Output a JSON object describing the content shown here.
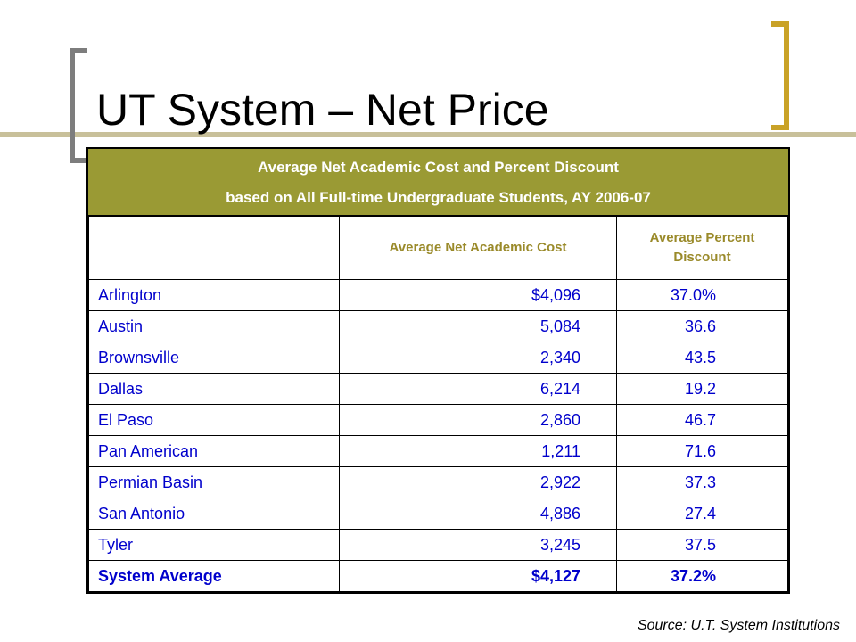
{
  "slide": {
    "title": "UT System – Net Price",
    "accent_gold": "#c9a227",
    "accent_grey": "#7d7d7d",
    "header_bg": "#9a9a34"
  },
  "table": {
    "caption_line1": "Average Net Academic Cost and Percent Discount",
    "caption_line2": "based on All Full-time Undergraduate Students,  AY 2006-07",
    "columns": [
      "",
      "Average Net Academic Cost",
      "Average Percent Discount"
    ],
    "rows": [
      {
        "name": "Arlington",
        "cost": "$4,096",
        "discount": "37.0%"
      },
      {
        "name": "Austin",
        "cost": "5,084",
        "discount": "36.6"
      },
      {
        "name": "Brownsville",
        "cost": "2,340",
        "discount": "43.5"
      },
      {
        "name": "Dallas",
        "cost": "6,214",
        "discount": "19.2"
      },
      {
        "name": "El Paso",
        "cost": "2,860",
        "discount": "46.7"
      },
      {
        "name": "Pan American",
        "cost": "1,211",
        "discount": "71.6"
      },
      {
        "name": "Permian Basin",
        "cost": "2,922",
        "discount": "37.3"
      },
      {
        "name": "San Antonio",
        "cost": "4,886",
        "discount": "27.4"
      },
      {
        "name": "Tyler",
        "cost": "3,245",
        "discount": "37.5"
      }
    ],
    "total": {
      "name": "System Average",
      "cost": "$4,127",
      "discount": "37.2%"
    }
  },
  "source": "Source: U.T. System Institutions"
}
